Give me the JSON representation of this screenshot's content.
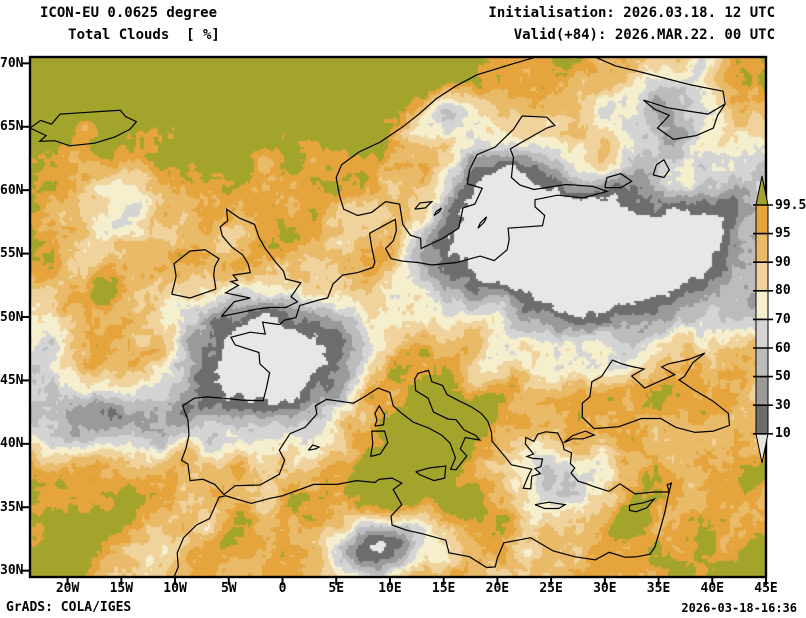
{
  "header": {
    "model_line": "ICON-EU 0.0625 degree",
    "variable_line": "Total Clouds  [ %]",
    "init_line": "Initialisation: 2026.03.18. 12 UTC",
    "valid_line": "Valid(+84): 2026.MAR.22. 00 UTC"
  },
  "map": {
    "lat_ticks": [
      "70N",
      "65N",
      "60N",
      "55N",
      "50N",
      "45N",
      "40N",
      "35N",
      "30N"
    ],
    "lon_ticks": [
      "20W",
      "15W",
      "10W",
      "5W",
      "0",
      "5E",
      "10E",
      "15E",
      "20E",
      "25E",
      "30E",
      "35E",
      "40E",
      "45E"
    ],
    "extent": {
      "lon_min": -23.5,
      "lon_max": 45.0,
      "lat_min": 29.5,
      "lat_max": 70.5
    }
  },
  "colorbar": {
    "tick_labels": [
      "99.5",
      "95",
      "90",
      "80",
      "70",
      "60",
      "50",
      "30",
      "10"
    ],
    "colors_high_to_low": [
      "#a3a42c",
      "#e5a43c",
      "#e9ba68",
      "#efd29c",
      "#f5efcd",
      "#d4d4d4",
      "#bcbcbc",
      "#9a9a9a",
      "#6d6d6d",
      "#e7e7e7"
    ],
    "units": "%"
  },
  "footer": {
    "left": "GrADS: COLA/IGES",
    "right": "2026-03-18-16:36"
  }
}
